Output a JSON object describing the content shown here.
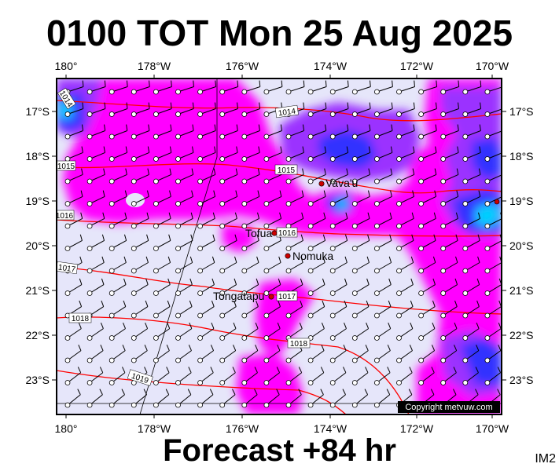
{
  "title": "0100 TOT Mon 25 Aug 2025",
  "footer": "Forecast +84 hr",
  "code": "IM2",
  "copyright": "Copyright metvuw.com",
  "lon_labels": [
    "180°",
    "178°W",
    "176°W",
    "174°W",
    "172°W",
    "170°W"
  ],
  "lat_labels": [
    "17°S",
    "18°S",
    "19°S",
    "20°S",
    "21°S",
    "22°S",
    "23°S"
  ],
  "isobar_labels": [
    "1014",
    "1014",
    "1015",
    "1015",
    "1016",
    "1016",
    "1017",
    "1017",
    "1018",
    "1018",
    "1019"
  ],
  "places": [
    {
      "name": "Vava'u",
      "lon": -174.0,
      "lat": -18.6
    },
    {
      "name": "Tofua",
      "lon": -175.1,
      "lat": -19.75
    },
    {
      "name": "Nomuka",
      "lon": -174.8,
      "lat": -20.25
    },
    {
      "name": "Tongatapu",
      "lon": -175.2,
      "lat": -21.15
    }
  ],
  "colors": {
    "background": "#e6e6fa",
    "magenta": "#ff00ff",
    "purple": "#9b30ff",
    "blue": "#3030ff",
    "cyan": "#00d0ff",
    "isobar": "#ff0000"
  }
}
